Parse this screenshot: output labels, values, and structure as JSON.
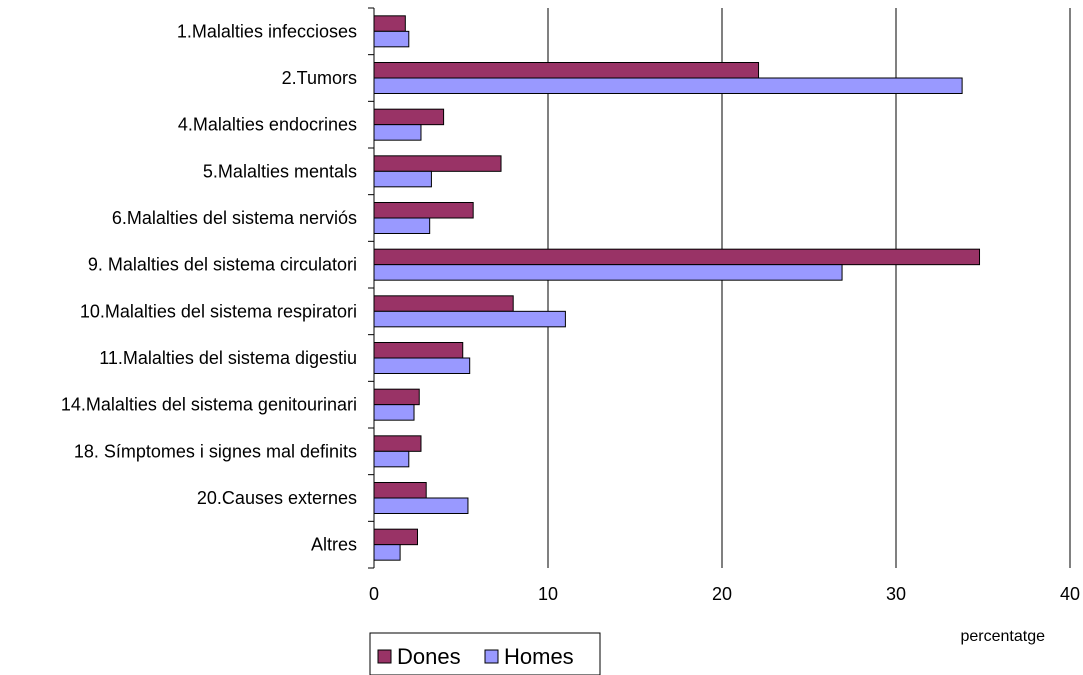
{
  "chart_data": {
    "type": "bar",
    "orientation": "horizontal",
    "categories": [
      "1.Malalties infeccioses",
      "2.Tumors",
      "4.Malalties endocrines",
      "5.Malalties mentals",
      "6.Malalties del sistema nerviós",
      "9. Malalties del sistema circulatori",
      "10.Malalties del sistema respiratori",
      "11.Malalties del sistema digestiu",
      "14.Malalties del sistema genitourinari",
      "18. Símptomes i signes mal definits",
      "20.Causes externes",
      "Altres"
    ],
    "series": [
      {
        "name": "Dones",
        "color": "#993366",
        "values": [
          1.8,
          22.1,
          4.0,
          7.3,
          5.7,
          34.8,
          8.0,
          5.1,
          2.6,
          2.7,
          3.0,
          2.5
        ]
      },
      {
        "name": "Homes",
        "color": "#9999ff",
        "values": [
          2.0,
          33.8,
          2.7,
          3.3,
          3.2,
          26.9,
          11.0,
          5.5,
          2.3,
          2.0,
          5.4,
          1.5
        ]
      }
    ],
    "xlabel": "percentatge",
    "ylabel": "",
    "xlim": [
      0,
      40
    ],
    "xticks": [
      0,
      10,
      20,
      30,
      40
    ],
    "grid": true,
    "legend": "bottom"
  }
}
